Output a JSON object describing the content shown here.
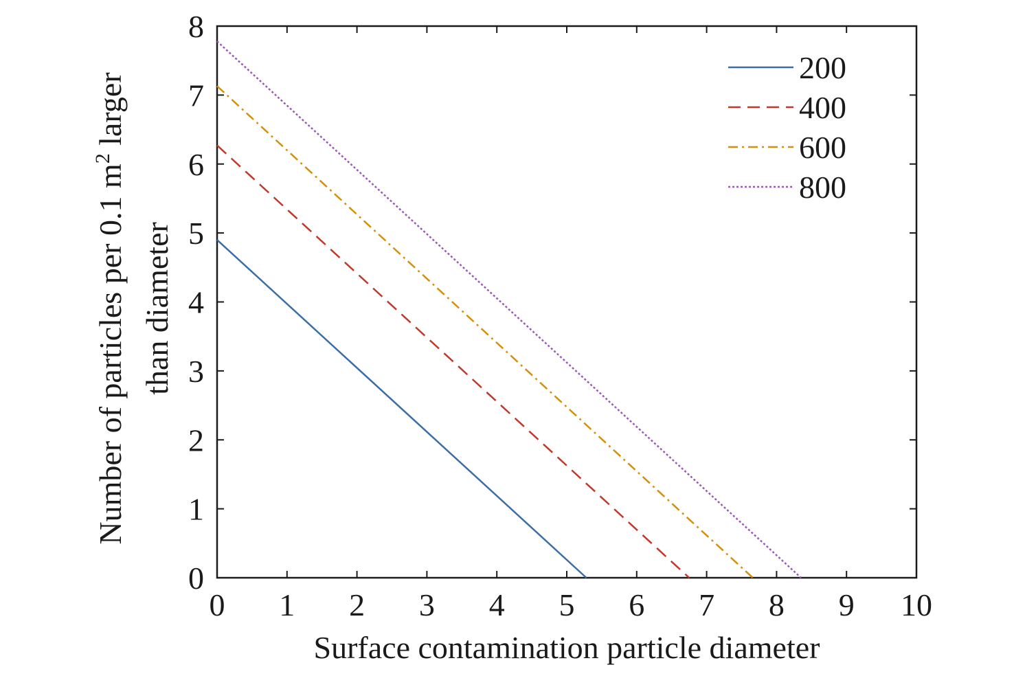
{
  "chart_data": {
    "type": "line",
    "xlabel": "Surface contamination particle diameter",
    "ylabel_line1_prefix": "Number of particles per 0.1 m",
    "ylabel_line1_sup": "2",
    "ylabel_line1_suffix": " larger",
    "ylabel_line2": "than diameter",
    "xlim": [
      0,
      10
    ],
    "ylim": [
      0,
      8
    ],
    "xticks": [
      "0",
      "1",
      "2",
      "3",
      "4",
      "5",
      "6",
      "7",
      "8",
      "9",
      "10"
    ],
    "yticks": [
      "0",
      "1",
      "2",
      "3",
      "4",
      "5",
      "6",
      "7",
      "8"
    ],
    "grid": false,
    "legend_position": "top-right",
    "series": [
      {
        "name": "200",
        "color": "#3a6ea5",
        "dash": "solid",
        "x": [
          0,
          5.28
        ],
        "y": [
          4.9,
          0
        ]
      },
      {
        "name": "400",
        "color": "#c0392b",
        "dash": "dashed",
        "x": [
          0,
          6.75
        ],
        "y": [
          6.27,
          0
        ]
      },
      {
        "name": "600",
        "color": "#d4900a",
        "dash": "dash-dot",
        "x": [
          0,
          7.66
        ],
        "y": [
          7.13,
          0
        ]
      },
      {
        "name": "800",
        "color": "#9b59b6",
        "dash": "dotted",
        "x": [
          0,
          8.35
        ],
        "y": [
          7.78,
          0
        ]
      }
    ]
  }
}
